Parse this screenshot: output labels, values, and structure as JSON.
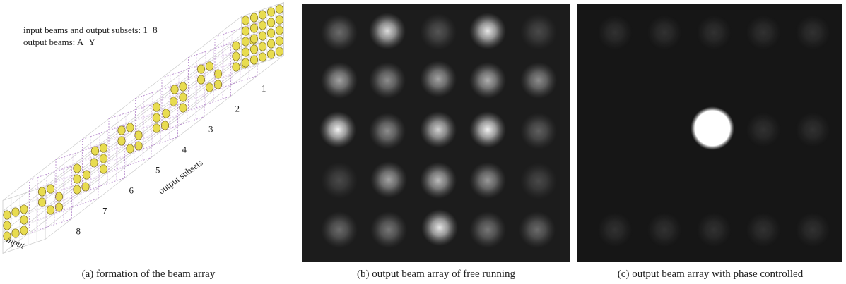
{
  "panel_a": {
    "legend": [
      "input beams and output subsets: 1−8",
      "output beams: A−Y"
    ],
    "subset_labels": [
      "1",
      "2",
      "3",
      "4",
      "5",
      "6",
      "7",
      "8"
    ],
    "axis_label": "output subsets",
    "input_label": "input",
    "caption": "(a) formation of the beam array"
  },
  "panel_b": {
    "caption": "(b) output beam array of free running"
  },
  "panel_c": {
    "caption": "(c) output beam array with phase controlled"
  }
}
